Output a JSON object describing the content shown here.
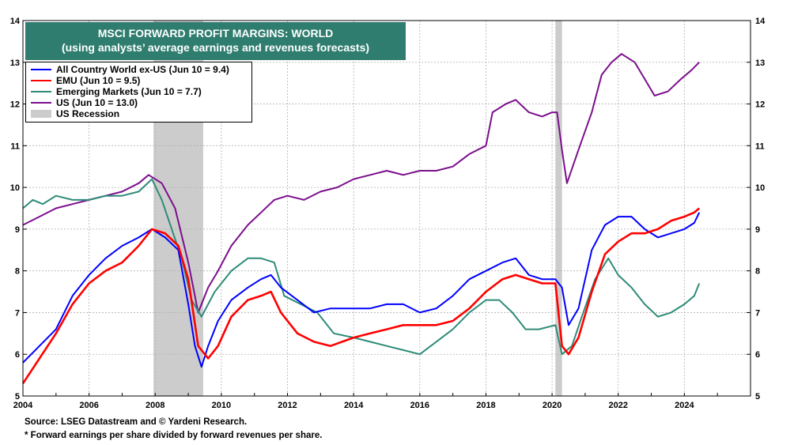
{
  "chart_data": {
    "type": "line",
    "title": "MSCI FORWARD PROFIT MARGINS: WORLD",
    "subtitle": "(using analysts’ average earnings and revenues forecasts)",
    "xlim": [
      2004,
      2026
    ],
    "ylim": [
      5,
      14
    ],
    "x_ticks": [
      2004,
      2006,
      2008,
      2010,
      2012,
      2014,
      2016,
      2018,
      2020,
      2022,
      2024
    ],
    "x_tick_labels": [
      "2004",
      "2006",
      "2008",
      "2010",
      "2012",
      "2014",
      "2016",
      "2018",
      "2020",
      "2022",
      "2024"
    ],
    "y_ticks": [
      5,
      6,
      7,
      8,
      9,
      10,
      11,
      12,
      13,
      14
    ],
    "y_tick_labels": [
      "5",
      "6",
      "7",
      "8",
      "9",
      "10",
      "11",
      "12",
      "13",
      "14"
    ],
    "grid": true,
    "legend_position": "top-left",
    "recessions": [
      {
        "start": 2007.95,
        "end": 2009.45
      },
      {
        "start": 2020.1,
        "end": 2020.3
      }
    ],
    "series": [
      {
        "name": "All Country World ex-US (Jun 10 = 9.4)",
        "color": "#0000ff",
        "x": [
          2004.0,
          2004.5,
          2005.0,
          2005.5,
          2006.0,
          2006.5,
          2007.0,
          2007.5,
          2007.9,
          2008.3,
          2008.7,
          2009.0,
          2009.2,
          2009.4,
          2009.6,
          2009.9,
          2010.3,
          2010.8,
          2011.2,
          2011.5,
          2011.8,
          2012.3,
          2012.8,
          2013.3,
          2014.0,
          2014.5,
          2015.0,
          2015.5,
          2016.0,
          2016.5,
          2017.0,
          2017.5,
          2018.0,
          2018.5,
          2018.9,
          2019.3,
          2019.7,
          2020.1,
          2020.3,
          2020.5,
          2020.8,
          2021.2,
          2021.6,
          2022.0,
          2022.4,
          2022.8,
          2023.2,
          2023.6,
          2024.0,
          2024.3,
          2024.45
        ],
        "y": [
          5.8,
          6.2,
          6.6,
          7.4,
          7.9,
          8.3,
          8.6,
          8.8,
          9.0,
          8.8,
          8.5,
          7.2,
          6.2,
          5.7,
          6.2,
          6.8,
          7.3,
          7.6,
          7.8,
          7.9,
          7.6,
          7.3,
          7.0,
          7.1,
          7.1,
          7.1,
          7.2,
          7.2,
          7.0,
          7.1,
          7.4,
          7.8,
          8.0,
          8.2,
          8.3,
          7.9,
          7.8,
          7.8,
          7.6,
          6.7,
          7.1,
          8.5,
          9.1,
          9.3,
          9.3,
          9.0,
          8.8,
          8.9,
          9.0,
          9.15,
          9.4
        ]
      },
      {
        "name": "EMU (Jun 10 = 9.5)",
        "color": "#ff0000",
        "x": [
          2004.0,
          2004.5,
          2005.0,
          2005.5,
          2006.0,
          2006.5,
          2007.0,
          2007.5,
          2007.9,
          2008.3,
          2008.7,
          2009.0,
          2009.3,
          2009.6,
          2009.9,
          2010.3,
          2010.8,
          2011.2,
          2011.5,
          2011.8,
          2012.3,
          2012.8,
          2013.3,
          2014.0,
          2014.5,
          2015.0,
          2015.5,
          2016.0,
          2016.5,
          2017.0,
          2017.5,
          2018.0,
          2018.5,
          2018.9,
          2019.3,
          2019.7,
          2020.1,
          2020.3,
          2020.5,
          2020.8,
          2021.2,
          2021.6,
          2022.0,
          2022.4,
          2022.8,
          2023.2,
          2023.6,
          2024.0,
          2024.3,
          2024.45
        ],
        "y": [
          5.3,
          5.9,
          6.5,
          7.2,
          7.7,
          8.0,
          8.2,
          8.6,
          9.0,
          8.9,
          8.6,
          7.8,
          6.2,
          5.9,
          6.2,
          6.9,
          7.3,
          7.4,
          7.5,
          7.0,
          6.5,
          6.3,
          6.2,
          6.4,
          6.5,
          6.6,
          6.7,
          6.7,
          6.7,
          6.8,
          7.1,
          7.5,
          7.8,
          7.9,
          7.8,
          7.7,
          7.7,
          6.2,
          6.0,
          6.4,
          7.5,
          8.4,
          8.7,
          8.9,
          8.9,
          9.0,
          9.2,
          9.3,
          9.4,
          9.5
        ]
      },
      {
        "name": "Emerging Markets (Jun 10 = 7.7)",
        "color": "#2e8b78",
        "x": [
          2004.0,
          2004.3,
          2004.6,
          2005.0,
          2005.5,
          2006.0,
          2006.5,
          2007.0,
          2007.5,
          2007.9,
          2008.2,
          2008.5,
          2008.8,
          2009.1,
          2009.4,
          2009.8,
          2010.3,
          2010.8,
          2011.2,
          2011.6,
          2011.9,
          2012.4,
          2012.9,
          2013.4,
          2014.0,
          2014.5,
          2015.0,
          2015.5,
          2016.0,
          2016.5,
          2017.0,
          2017.5,
          2018.0,
          2018.4,
          2018.8,
          2019.2,
          2019.6,
          2020.1,
          2020.3,
          2020.6,
          2020.9,
          2021.3,
          2021.7,
          2022.0,
          2022.4,
          2022.8,
          2023.2,
          2023.6,
          2024.0,
          2024.3,
          2024.45
        ],
        "y": [
          9.5,
          9.7,
          9.6,
          9.8,
          9.7,
          9.7,
          9.8,
          9.8,
          9.9,
          10.2,
          9.7,
          9.0,
          8.3,
          7.3,
          6.9,
          7.5,
          8.0,
          8.3,
          8.3,
          8.2,
          7.4,
          7.2,
          7.0,
          6.5,
          6.4,
          6.3,
          6.2,
          6.1,
          6.0,
          6.3,
          6.6,
          7.0,
          7.3,
          7.3,
          7.0,
          6.6,
          6.6,
          6.7,
          6.0,
          6.2,
          6.9,
          7.8,
          8.3,
          7.9,
          7.6,
          7.2,
          6.9,
          7.0,
          7.2,
          7.4,
          7.7
        ]
      },
      {
        "name": "US (Jun 10 = 13.0)",
        "color": "#7b0f8c",
        "x": [
          2004.0,
          2004.5,
          2005.0,
          2005.5,
          2006.0,
          2006.5,
          2007.0,
          2007.5,
          2007.8,
          2008.2,
          2008.6,
          2009.0,
          2009.3,
          2009.6,
          2009.9,
          2010.3,
          2010.8,
          2011.2,
          2011.6,
          2012.0,
          2012.5,
          2013.0,
          2013.5,
          2014.0,
          2014.5,
          2015.0,
          2015.5,
          2016.0,
          2016.5,
          2017.0,
          2017.5,
          2018.0,
          2018.2,
          2018.6,
          2018.9,
          2019.3,
          2019.7,
          2020.0,
          2020.15,
          2020.3,
          2020.45,
          2020.8,
          2021.2,
          2021.5,
          2021.8,
          2022.1,
          2022.5,
          2022.8,
          2023.1,
          2023.5,
          2023.9,
          2024.2,
          2024.45
        ],
        "y": [
          9.1,
          9.3,
          9.5,
          9.6,
          9.7,
          9.8,
          9.9,
          10.1,
          10.3,
          10.1,
          9.5,
          8.2,
          7.0,
          7.6,
          8.0,
          8.6,
          9.1,
          9.4,
          9.7,
          9.8,
          9.7,
          9.9,
          10.0,
          10.2,
          10.3,
          10.4,
          10.3,
          10.4,
          10.4,
          10.5,
          10.8,
          11.0,
          11.8,
          12.0,
          12.1,
          11.8,
          11.7,
          11.8,
          11.8,
          10.9,
          10.1,
          10.9,
          11.8,
          12.7,
          13.0,
          13.2,
          13.0,
          12.6,
          12.2,
          12.3,
          12.6,
          12.8,
          13.0
        ]
      }
    ],
    "legend": {
      "items": [
        {
          "label": "All Country World ex-US (Jun 10 = 9.4)",
          "color": "#0000ff",
          "kind": "line"
        },
        {
          "label": "EMU (Jun 10 = 9.5)",
          "color": "#ff0000",
          "kind": "line"
        },
        {
          "label": "Emerging Markets (Jun 10 = 7.7)",
          "color": "#2e8b78",
          "kind": "line"
        },
        {
          "label": "US (Jun 10 = 13.0)",
          "color": "#7b0f8c",
          "kind": "line"
        },
        {
          "label": "US Recession",
          "color": "#cccccc",
          "kind": "rect"
        }
      ]
    },
    "title_box_color": "#2e7d6e",
    "recession_color": "#cccccc",
    "grid_color": "#b0b0b0"
  },
  "footer": {
    "source": "Source: LSEG Datastream and © Yardeni Research.",
    "note": "* Forward earnings per share divided by forward revenues per share."
  }
}
